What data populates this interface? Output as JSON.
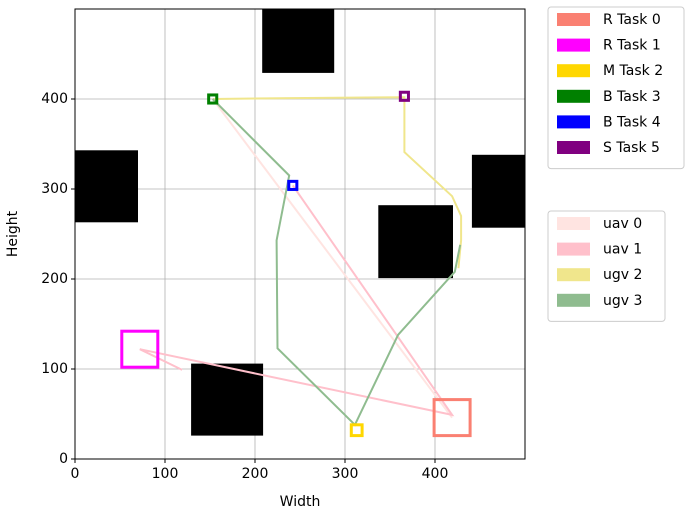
{
  "chart_data": {
    "type": "map",
    "xlabel": "Width",
    "ylabel": "Height",
    "xlim": [
      0,
      500
    ],
    "ylim": [
      0,
      500
    ],
    "xticks": [
      0,
      100,
      200,
      300,
      400
    ],
    "yticks": [
      0,
      100,
      200,
      300,
      400
    ],
    "grid": true,
    "obstacle_color": "#000000",
    "obstacles": [
      {
        "x": 208,
        "y": 429,
        "width": 80,
        "height": 71
      },
      {
        "x": 0,
        "y": 263,
        "width": 70,
        "height": 80
      },
      {
        "x": 441,
        "y": 257,
        "width": 59,
        "height": 81
      },
      {
        "x": 337,
        "y": 201,
        "width": 83,
        "height": 81
      },
      {
        "x": 129,
        "y": 26,
        "width": 80,
        "height": 80
      }
    ],
    "tasks": [
      {
        "name": "R Task 0",
        "color": "#fa8072",
        "x": 419,
        "y": 46,
        "size": 40
      },
      {
        "name": "R Task 1",
        "color": "#ff00ff",
        "x": 72,
        "y": 122,
        "size": 40
      },
      {
        "name": "M Task 2",
        "color": "#ffd700",
        "x": 313,
        "y": 32,
        "size": 12
      },
      {
        "name": "B Task 3",
        "color": "#008000",
        "x": 153,
        "y": 400,
        "size": 9
      },
      {
        "name": "B Task 4",
        "color": "#0000ff",
        "x": 242,
        "y": 304,
        "size": 9
      },
      {
        "name": "S Task 5",
        "color": "#800080",
        "x": 366,
        "y": 403,
        "size": 9
      }
    ],
    "series": [
      {
        "name": "uav 0",
        "color": "#ffe4e1",
        "x": [
          153,
          419
        ],
        "y": [
          400,
          46
        ]
      },
      {
        "name": "uav 1",
        "color": "#ffc0cb",
        "x": [
          119,
          72,
          419,
          242
        ],
        "y": [
          99,
          122,
          49,
          304
        ]
      },
      {
        "name": "ugv 2",
        "color": "#f0e68c",
        "x": [
          153,
          240,
          366,
          366,
          419,
          429,
          429,
          426
        ],
        "y": [
          400,
          401,
          402,
          341,
          292,
          270,
          243,
          212
        ]
      },
      {
        "name": "ugv 3",
        "color": "#8fbc8f",
        "x": [
          153,
          238,
          224,
          225,
          311,
          359,
          422,
          428
        ],
        "y": [
          400,
          315,
          243,
          123,
          38,
          138,
          208,
          238
        ]
      }
    ]
  }
}
